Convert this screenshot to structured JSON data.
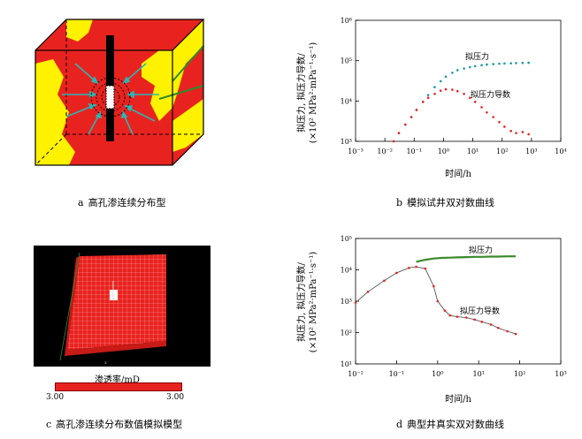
{
  "panels": {
    "a": {
      "letter": "a",
      "caption": "高孔渗连续分布型"
    },
    "b": {
      "letter": "b",
      "caption": "模拟试井双对数曲线",
      "ylabel_line1": "拟压力, 拟压力导数/",
      "ylabel_line2": "(×10² MPa²·mPa⁻¹·s⁻¹)",
      "xlabel": "时间/h",
      "legend_pressure": "拟压力",
      "legend_derivative": "拟压力导数",
      "xticks": [
        "10⁻³",
        "10⁻²",
        "10⁻¹",
        "10⁰",
        "10¹",
        "10²",
        "10³",
        "10⁴"
      ],
      "yticks": [
        "10³",
        "10⁴",
        "10⁵",
        "10⁶"
      ]
    },
    "c": {
      "letter": "c",
      "caption": "高孔渗连续分布数值模拟模型",
      "colorbar_label": "渗透率/mD",
      "colorbar_min": "3.00",
      "colorbar_max": "3.00"
    },
    "d": {
      "letter": "d",
      "caption": "典型井真实双对数曲线",
      "ylabel_line1": "拟压力, 拟压力导数/",
      "ylabel_line2": "(×10² MPa²·mPa⁻¹·s⁻¹)",
      "xlabel": "时间/h",
      "legend_pressure": "拟压力",
      "legend_derivative": "拟压力导数",
      "xticks": [
        "10⁻²",
        "10⁻¹",
        "10⁰",
        "10¹",
        "10²",
        "10³"
      ],
      "yticks": [
        "10¹",
        "10²",
        "10³",
        "10⁴",
        "10⁵"
      ]
    }
  },
  "colors": {
    "red": "#e8231f",
    "yellow": "#fff200",
    "teal": "#1a9a9a",
    "green": "#3a8a2a",
    "dark": "#555555"
  },
  "chart_data": [
    {
      "type": "scatter",
      "id": "b",
      "x_scale": "log",
      "y_scale": "log",
      "xlim": [
        0.001,
        10000
      ],
      "ylim": [
        1000,
        1000000
      ],
      "series": [
        {
          "name": "拟压力",
          "x": [
            0.02,
            0.03,
            0.05,
            0.08,
            0.12,
            0.2,
            0.3,
            0.5,
            0.8,
            1.2,
            2,
            3,
            5,
            8,
            12,
            20,
            30,
            50,
            80,
            120,
            200,
            300,
            500,
            800
          ],
          "y": [
            1000,
            1600,
            2600,
            4000,
            6000,
            9500,
            14000,
            22000,
            31000,
            40000,
            50000,
            58000,
            64000,
            69000,
            73000,
            77000,
            80000,
            82000,
            84000,
            85000,
            86000,
            87000,
            88000,
            88500
          ]
        },
        {
          "name": "拟压力导数",
          "x": [
            0.02,
            0.03,
            0.05,
            0.08,
            0.12,
            0.2,
            0.3,
            0.5,
            0.8,
            1.2,
            2,
            3,
            5,
            8,
            12,
            20,
            30,
            50,
            80,
            120,
            200,
            300,
            500,
            800
          ],
          "y": [
            1000,
            1600,
            2600,
            4000,
            6000,
            9500,
            12000,
            15000,
            18000,
            19500,
            19000,
            17500,
            15000,
            12000,
            9500,
            7000,
            5200,
            4000,
            3000,
            2300,
            1800,
            1600,
            1700,
            1500
          ]
        }
      ]
    },
    {
      "type": "line",
      "id": "d",
      "x_scale": "log",
      "y_scale": "log",
      "xlim": [
        0.01,
        1000
      ],
      "ylim": [
        10,
        100000
      ],
      "series": [
        {
          "name": "拟压力",
          "x": [
            0.3,
            0.5,
            0.8,
            1.2,
            2,
            3,
            5,
            8,
            12,
            20,
            30,
            50,
            80
          ],
          "y": [
            18000,
            21000,
            23000,
            24000,
            24500,
            25000,
            25500,
            26000,
            26000,
            26500,
            26500,
            27000,
            27000
          ]
        },
        {
          "name": "拟压力导数",
          "x": [
            0.01,
            0.02,
            0.05,
            0.1,
            0.2,
            0.3,
            0.5,
            0.8,
            1,
            1.5,
            2,
            3,
            5,
            8,
            12,
            20,
            30,
            50,
            80
          ],
          "y": [
            900,
            2000,
            4500,
            8000,
            11500,
            12500,
            11000,
            3000,
            1000,
            500,
            350,
            320,
            300,
            260,
            220,
            180,
            140,
            110,
            90
          ]
        }
      ]
    }
  ]
}
